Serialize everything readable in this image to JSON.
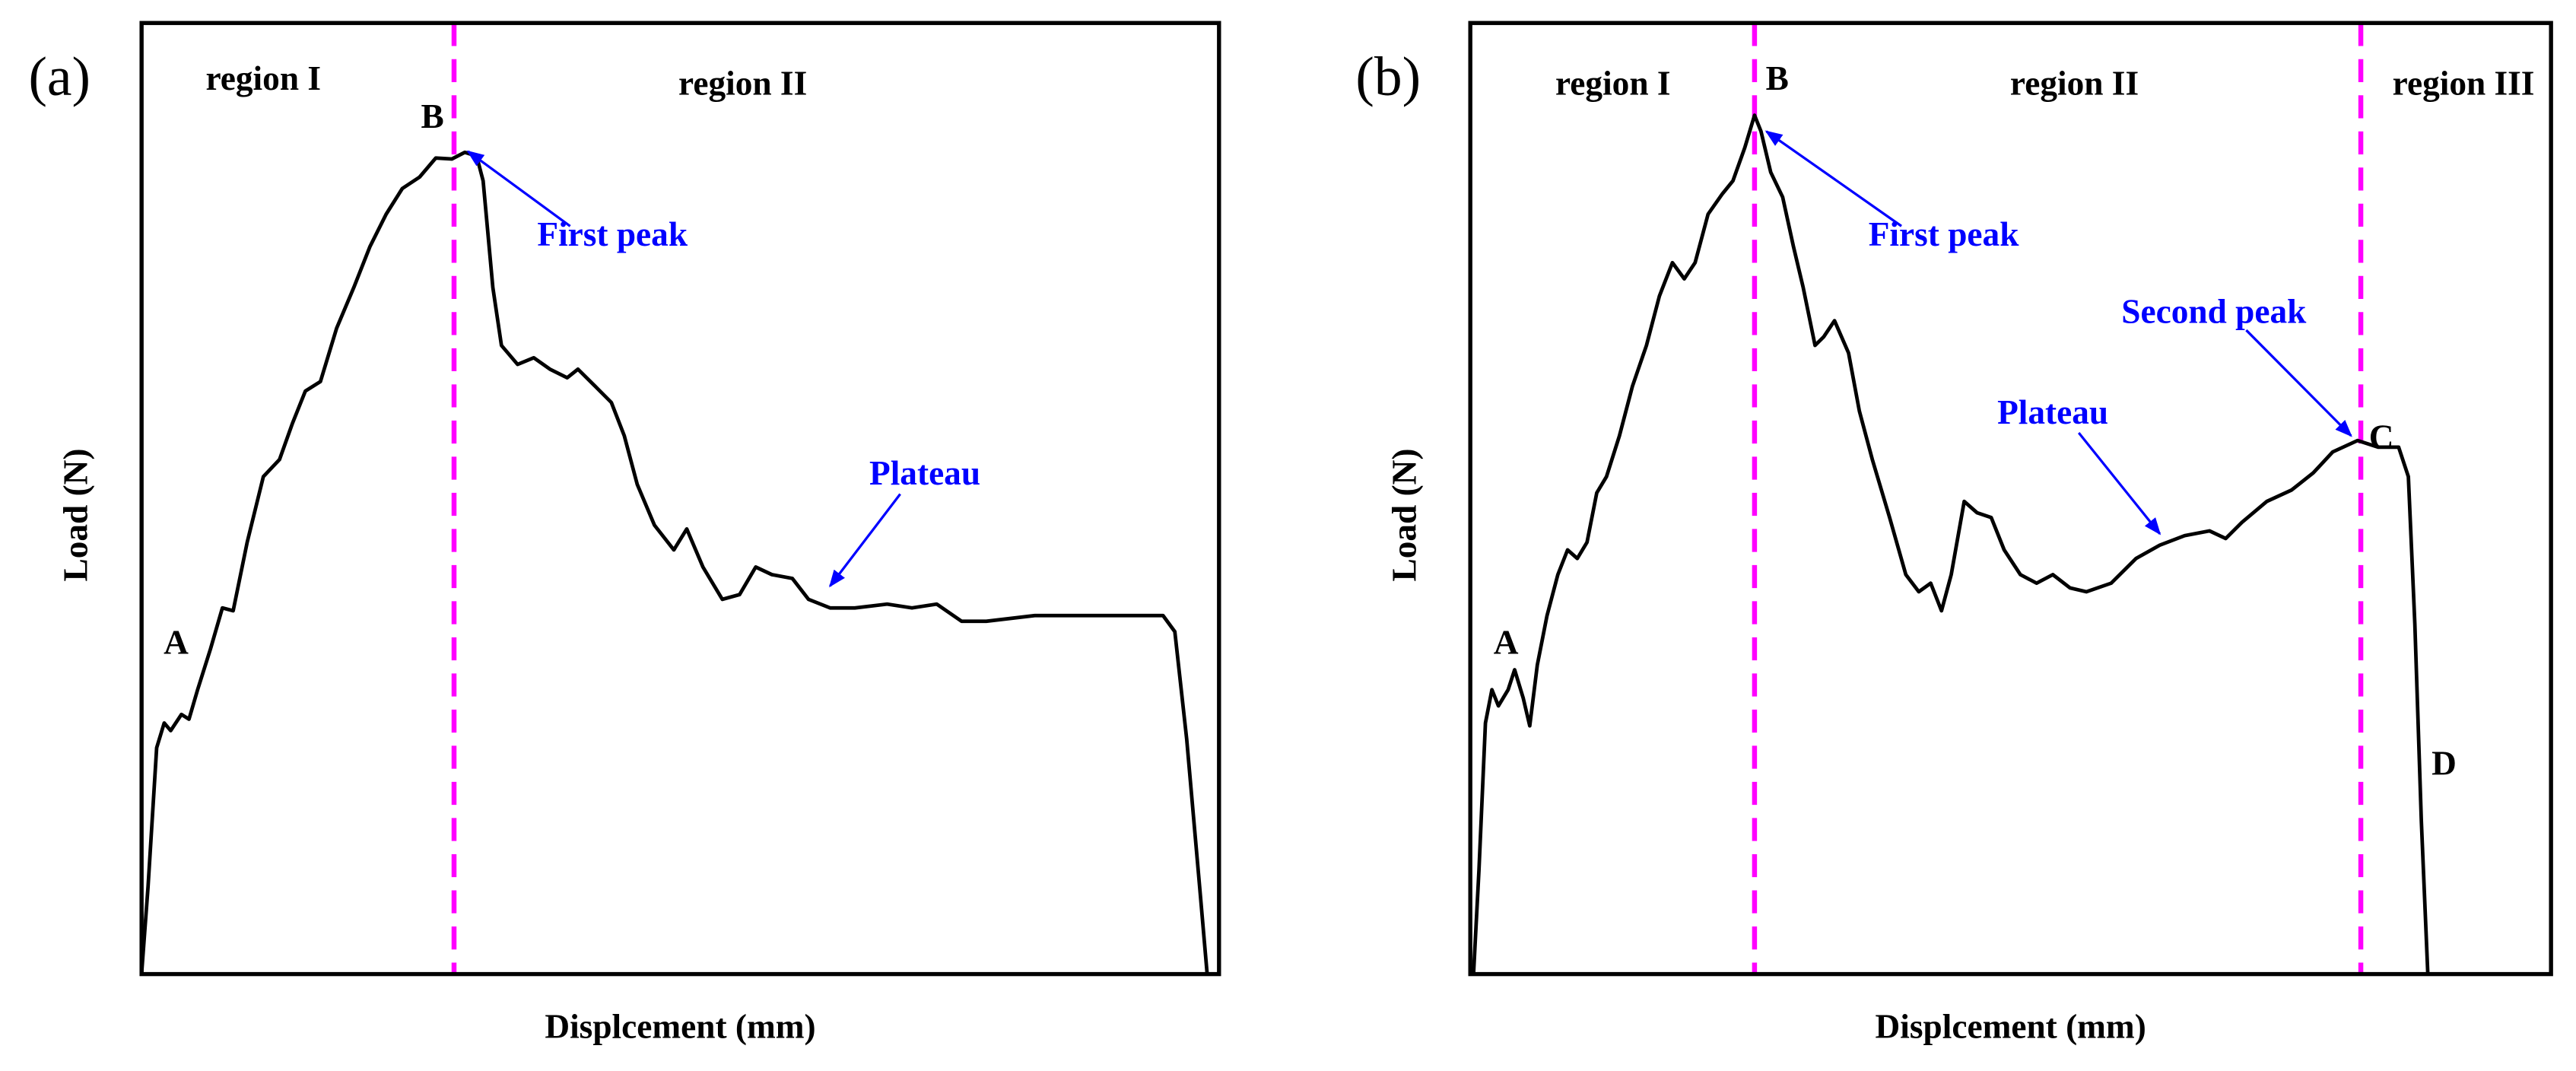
{
  "chart_data": [
    {
      "type": "line",
      "panel_label": "(a)",
      "xlabel": "Displcement (mm)",
      "ylabel": "Load (N)",
      "xlim": [
        0,
        100
      ],
      "ylim": [
        0,
        100
      ],
      "series": [
        {
          "color": "#000000",
          "x": [
            0,
            0.6,
            1.4,
            2.1,
            2.7,
            3.7,
            4.4,
            5.2,
            6.4,
            7.5,
            8.5,
            9.8,
            11.3,
            12.8,
            14.0,
            15.2,
            16.6,
            18.1,
            19.7,
            21.2,
            22.7,
            24.2,
            25.8,
            27.3,
            28.8,
            30.0,
            31.1,
            31.7,
            32.6,
            33.4,
            34.9,
            36.4,
            37.9,
            39.5,
            40.5,
            42.1,
            43.6,
            44.8,
            46.0,
            47.6,
            49.4,
            50.6,
            52.1,
            53.9,
            55.5,
            57.0,
            58.5,
            60.4,
            61.9,
            63.9,
            66.2,
            69.2,
            71.5,
            73.8,
            76.1,
            78.4,
            82.9,
            87.5,
            92.1,
            94.8,
            95.9,
            97.0,
            98.2,
            98.9
          ],
          "values": [
            0,
            9.2,
            23.8,
            26.4,
            25.6,
            27.3,
            26.8,
            29.9,
            34.2,
            38.5,
            38.2,
            45.4,
            52.3,
            54.1,
            57.9,
            61.3,
            62.3,
            67.9,
            72.2,
            76.5,
            79.9,
            82.6,
            83.8,
            85.8,
            85.7,
            86.4,
            86.0,
            83.4,
            72.2,
            66.1,
            64.1,
            64.8,
            63.6,
            62.7,
            63.6,
            61.8,
            60.1,
            56.6,
            51.5,
            47.2,
            44.6,
            46.8,
            42.8,
            39.4,
            39.9,
            42.8,
            42.0,
            41.6,
            39.4,
            38.5,
            38.5,
            38.9,
            38.5,
            38.9,
            37.1,
            37.1,
            37.7,
            37.7,
            37.7,
            37.7,
            36.0,
            24.7,
            9.2,
            0
          ]
        }
      ],
      "vlines": {
        "color": "#ff00ff",
        "x": [
          29.0
        ]
      },
      "annotations": [
        {
          "text": "region I",
          "x": 11.3,
          "y": 93.8,
          "color": "#000000"
        },
        {
          "text": "region II",
          "x": 55.8,
          "y": 93.3,
          "color": "#000000"
        },
        {
          "text": "B",
          "x": 27.0,
          "y": 89.8,
          "color": "#000000"
        },
        {
          "text": "A",
          "x": 3.2,
          "y": 34.5,
          "color": "#000000"
        },
        {
          "text": "First peak",
          "x": 43.7,
          "y": 77.4,
          "color": "#0000ff",
          "arrow_to": [
            30.3,
            86.5
          ]
        },
        {
          "text": "Plateau",
          "x": 72.7,
          "y": 52.3,
          "color": "#0000ff",
          "arrow_to": [
            63.9,
            40.8
          ]
        }
      ]
    },
    {
      "type": "line",
      "panel_label": "(b)",
      "xlabel": "Displcement (mm)",
      "ylabel": "Load (N)",
      "xlim": [
        0,
        100
      ],
      "ylim": [
        0,
        100
      ],
      "series": [
        {
          "color": "#000000",
          "x": [
            0.3,
            0.8,
            1.4,
            2.0,
            2.6,
            3.5,
            4.1,
            4.9,
            5.5,
            6.2,
            7.1,
            8.1,
            9.0,
            9.9,
            10.8,
            11.7,
            12.6,
            13.8,
            15.0,
            16.3,
            17.5,
            18.7,
            19.8,
            20.8,
            22.0,
            23.3,
            24.3,
            25.4,
            26.3,
            26.9,
            27.8,
            28.9,
            29.9,
            30.8,
            31.9,
            32.7,
            33.7,
            35.0,
            36.0,
            37.2,
            38.8,
            40.3,
            41.5,
            42.6,
            43.6,
            44.5,
            45.7,
            46.9,
            48.2,
            49.4,
            50.9,
            52.4,
            53.9,
            55.5,
            57.0,
            59.3,
            61.6,
            63.8,
            66.1,
            68.4,
            69.9,
            71.4,
            73.7,
            76.0,
            78.0,
            79.8,
            82.1,
            84.0,
            85.9,
            86.8,
            87.4,
            88.0,
            88.6
          ],
          "values": [
            0,
            10.9,
            26.4,
            29.9,
            28.2,
            29.9,
            32.0,
            29.0,
            26.1,
            32.5,
            37.7,
            42.0,
            44.6,
            43.7,
            45.4,
            50.6,
            52.3,
            56.6,
            61.8,
            66.1,
            71.3,
            74.8,
            73.1,
            74.8,
            79.9,
            82.0,
            83.4,
            86.9,
            90.3,
            88.6,
            84.3,
            81.7,
            76.5,
            72.2,
            66.1,
            67.0,
            68.7,
            65.3,
            59.2,
            54.1,
            48.0,
            42.0,
            40.2,
            41.1,
            38.2,
            42.0,
            49.7,
            48.5,
            48.0,
            44.6,
            42.0,
            41.1,
            42.0,
            40.6,
            40.2,
            41.1,
            43.7,
            45.1,
            46.1,
            46.6,
            45.8,
            47.5,
            49.7,
            50.9,
            52.7,
            54.9,
            56.1,
            55.4,
            55.4,
            52.3,
            36.8,
            16.1,
            0
          ]
        }
      ],
      "vlines": {
        "color": "#ff00ff",
        "x": [
          26.3,
          82.4
        ]
      },
      "annotations": [
        {
          "text": "region I",
          "x": 13.2,
          "y": 93.3,
          "color": "#000000"
        },
        {
          "text": "region II",
          "x": 55.9,
          "y": 93.3,
          "color": "#000000"
        },
        {
          "text": "region III",
          "x": 91.9,
          "y": 93.3,
          "color": "#000000"
        },
        {
          "text": "B",
          "x": 28.4,
          "y": 93.8,
          "color": "#000000"
        },
        {
          "text": "A",
          "x": 3.3,
          "y": 34.5,
          "color": "#000000"
        },
        {
          "text": "C",
          "x": 84.3,
          "y": 56.1,
          "color": "#000000"
        },
        {
          "text": "D",
          "x": 90.1,
          "y": 21.8,
          "color": "#000000"
        },
        {
          "text": "First peak",
          "x": 43.8,
          "y": 77.4,
          "color": "#0000ff",
          "arrow_to": [
            27.4,
            88.6
          ]
        },
        {
          "text": "Second peak",
          "x": 68.8,
          "y": 69.3,
          "color": "#0000ff",
          "arrow_to": [
            81.5,
            56.6
          ]
        },
        {
          "text": "Plateau",
          "x": 53.9,
          "y": 58.7,
          "color": "#0000ff",
          "arrow_to": [
            63.8,
            46.3
          ]
        }
      ]
    }
  ]
}
